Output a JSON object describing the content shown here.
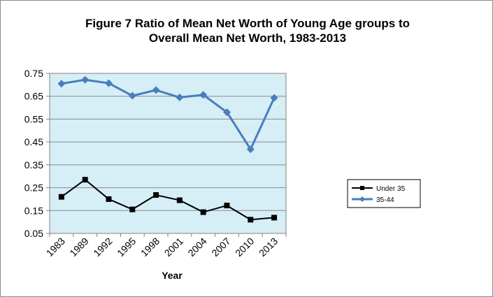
{
  "chart_data": {
    "type": "line",
    "title_lines": [
      "Figure 7 Ratio of Mean Net Worth of Young Age groups to",
      "Overall Mean Net Worth, 1983-2013"
    ],
    "xlabel": "Year",
    "ylabel": "",
    "categories": [
      "1983",
      "1989",
      "1992",
      "1995",
      "1998",
      "2001",
      "2004",
      "2007",
      "2010",
      "2013"
    ],
    "y_ticks": [
      "0.05",
      "0.15",
      "0.25",
      "0.35",
      "0.45",
      "0.55",
      "0.65",
      "0.75"
    ],
    "ylim": [
      0.05,
      0.75
    ],
    "grid": true,
    "legend_position": "right",
    "plot_background": "#d6eef6",
    "series": [
      {
        "name": "Under 35",
        "color": "#000000",
        "marker": "square",
        "values": [
          0.21,
          0.285,
          0.2,
          0.155,
          0.218,
          0.195,
          0.143,
          0.172,
          0.11,
          0.119
        ]
      },
      {
        "name": "35-44",
        "color": "#4a7ebb",
        "marker": "diamond",
        "values": [
          0.705,
          0.722,
          0.707,
          0.652,
          0.677,
          0.645,
          0.656,
          0.58,
          0.418,
          0.643
        ]
      }
    ]
  }
}
